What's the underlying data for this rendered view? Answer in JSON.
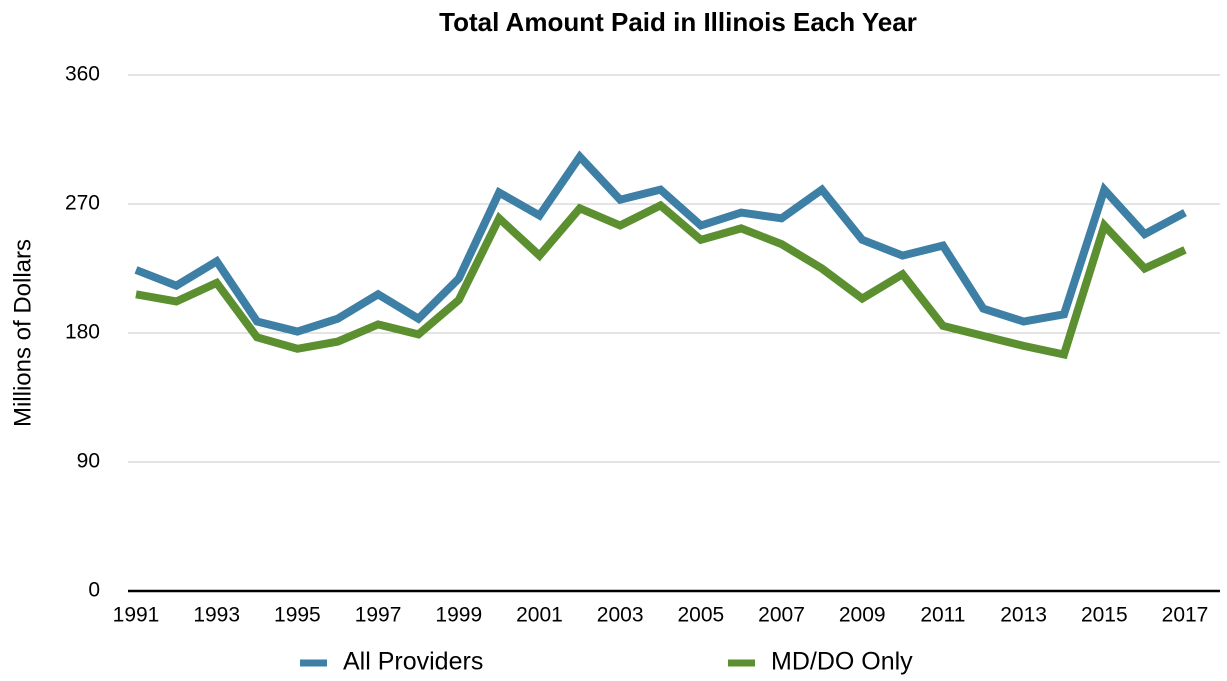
{
  "chart_data": {
    "type": "line",
    "title": "Total Amount Paid in Illinois Each Year",
    "y_label": "Millions of Dollars",
    "x": [
      1991,
      1992,
      1993,
      1994,
      1995,
      1996,
      1997,
      1998,
      1999,
      2000,
      2001,
      2002,
      2003,
      2004,
      2005,
      2006,
      2007,
      2008,
      2009,
      2010,
      2011,
      2012,
      2013,
      2014,
      2015,
      2016,
      2017
    ],
    "xlim": [
      1991,
      2017
    ],
    "xticks": [
      1991,
      1993,
      1995,
      1997,
      1999,
      2001,
      2003,
      2005,
      2007,
      2009,
      2011,
      2013,
      2015,
      2017
    ],
    "ylim": [
      0,
      360
    ],
    "yticks": [
      0,
      90,
      180,
      270,
      360
    ],
    "grid": true,
    "legend": "bottom",
    "series": [
      {
        "name": "All Providers",
        "color": "#3e7fa5",
        "values": [
          224,
          213,
          230,
          188,
          181,
          190,
          207,
          190,
          218,
          278,
          262,
          303,
          273,
          280,
          255,
          264,
          260,
          280,
          245,
          234,
          241,
          197,
          188,
          193,
          280,
          249,
          264
        ]
      },
      {
        "name": "MD/DO Only",
        "color": "#5b8f2f",
        "values": [
          207,
          202,
          215,
          177,
          169,
          174,
          186,
          179,
          203,
          260,
          234,
          267,
          255,
          269,
          245,
          253,
          242,
          225,
          204,
          221,
          185,
          178,
          171,
          165,
          255,
          225,
          238
        ]
      }
    ]
  }
}
